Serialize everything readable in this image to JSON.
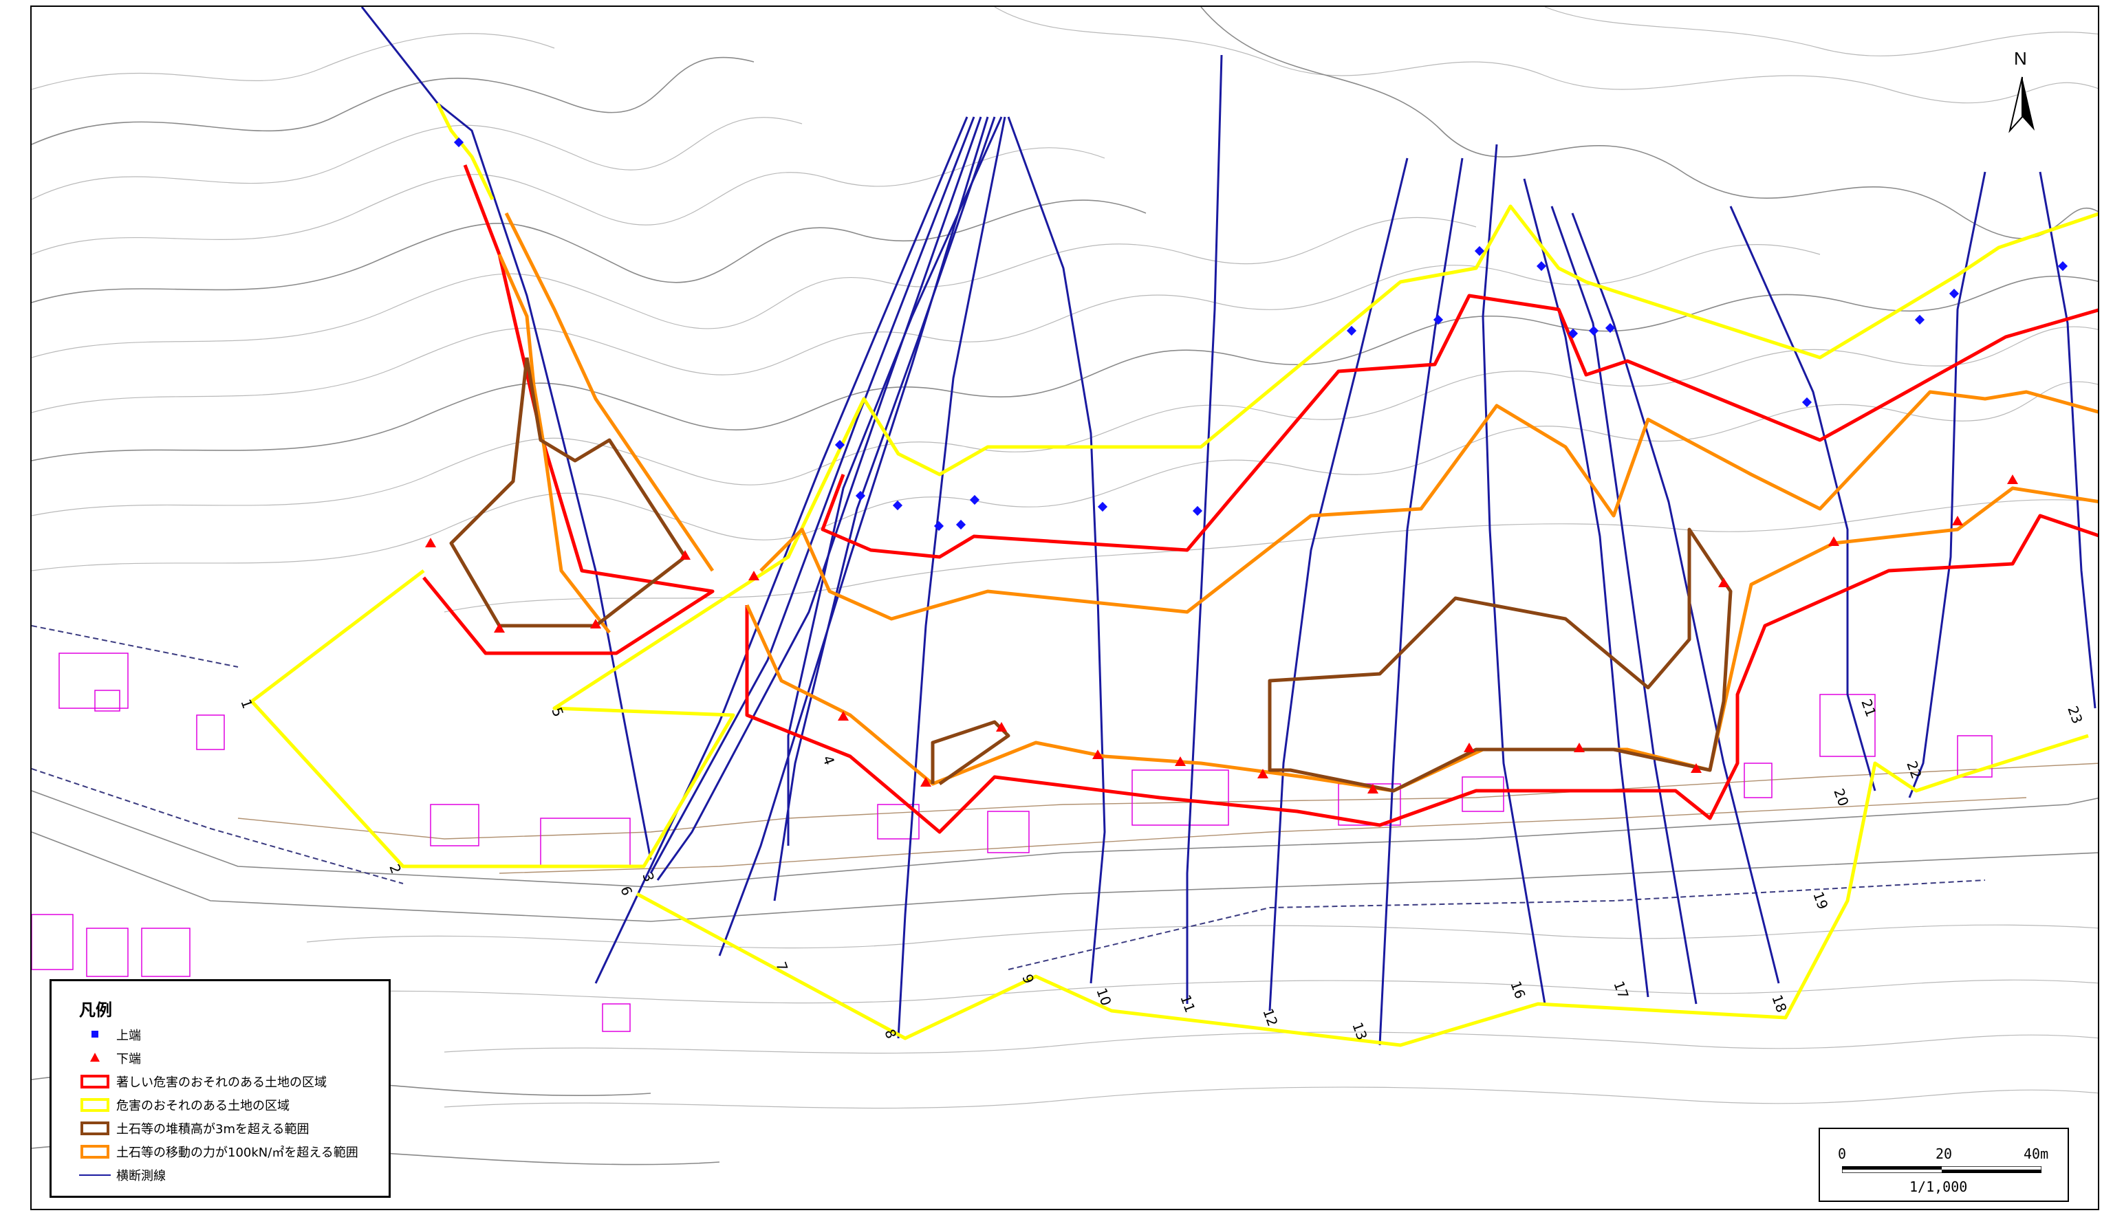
{
  "legend": {
    "title": "凡例",
    "items": [
      {
        "label": "上端",
        "symbol": "blue-square-icon"
      },
      {
        "label": "下端",
        "symbol": "red-triangle-icon"
      },
      {
        "label": "著しい危害のおそれのある土地の区域",
        "symbol": "red-box",
        "color": "#ff0000"
      },
      {
        "label": "危害のおそれのある土地の区域",
        "symbol": "yellow-box",
        "color": "#ffff00"
      },
      {
        "label": "土石等の堆積高が3mを超える範囲",
        "symbol": "brown-box",
        "color": "#8b4513"
      },
      {
        "label": "土石等の移動の力が100kN/㎡を超える範囲",
        "symbol": "orange-box",
        "color": "#ff8c00"
      },
      {
        "label": "横断測線",
        "symbol": "blue-line",
        "color": "#1a1aa0"
      }
    ]
  },
  "north_arrow": {
    "label": "N"
  },
  "scale": {
    "ticks": [
      "0",
      "20",
      "40m"
    ],
    "ratio": "1/1,000"
  },
  "section_numbers": [
    "1",
    "2",
    "3",
    "4",
    "5",
    "6",
    "7",
    "8",
    "9",
    "10",
    "11",
    "12",
    "13",
    "16",
    "17",
    "18",
    "19",
    "20",
    "21",
    "22",
    "23"
  ],
  "colors": {
    "red_zone": "#ff0000",
    "yellow_zone": "#ffff00",
    "brown_zone": "#8b4513",
    "orange_zone": "#ff8c00",
    "section_line": "#1a1aa0",
    "building": "#e000e0"
  }
}
